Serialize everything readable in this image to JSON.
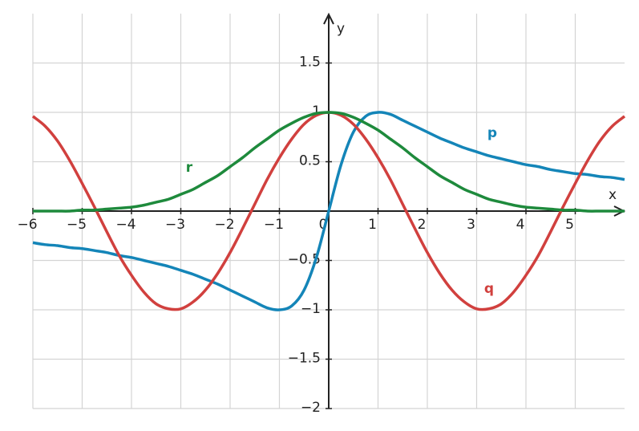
{
  "chart_data": {
    "type": "line",
    "x_label": "x",
    "y_label": "y",
    "x": [
      -6,
      -5.75,
      -5.5,
      -5.25,
      -5,
      -4.75,
      -4.5,
      -4.25,
      -4,
      -3.75,
      -3.5,
      -3.25,
      -3,
      -2.75,
      -2.5,
      -2.25,
      -2,
      -1.75,
      -1.5,
      -1.25,
      -1,
      -0.75,
      -0.5,
      -0.25,
      0,
      0.25,
      0.5,
      0.75,
      1,
      1.25,
      1.5,
      1.75,
      2,
      2.25,
      2.5,
      2.75,
      3,
      3.25,
      3.5,
      3.75,
      4,
      4.25,
      4.5,
      4.75,
      5,
      5.25,
      5.5,
      5.75,
      6
    ],
    "series": [
      {
        "name": "p",
        "color": "#1485b8",
        "values": [
          -0.32,
          -0.34,
          -0.35,
          -0.37,
          -0.38,
          -0.4,
          -0.42,
          -0.45,
          -0.47,
          -0.5,
          -0.53,
          -0.56,
          -0.6,
          -0.64,
          -0.69,
          -0.74,
          -0.8,
          -0.86,
          -0.92,
          -0.98,
          -1,
          -0.96,
          -0.8,
          -0.47,
          0,
          0.47,
          0.8,
          0.96,
          1,
          0.98,
          0.92,
          0.86,
          0.8,
          0.74,
          0.69,
          0.64,
          0.6,
          0.56,
          0.53,
          0.5,
          0.47,
          0.45,
          0.42,
          0.4,
          0.38,
          0.37,
          0.35,
          0.34,
          0.32
        ]
      },
      {
        "name": "q",
        "color": "#d1403e",
        "values": [
          0.96,
          0.86,
          0.71,
          0.51,
          0.28,
          0.04,
          -0.21,
          -0.45,
          -0.65,
          -0.82,
          -0.94,
          -0.99,
          -0.99,
          -0.92,
          -0.8,
          -0.63,
          -0.42,
          -0.18,
          0.07,
          0.32,
          0.54,
          0.73,
          0.88,
          0.97,
          1,
          0.97,
          0.88,
          0.73,
          0.54,
          0.32,
          0.07,
          -0.18,
          -0.42,
          -0.63,
          -0.8,
          -0.92,
          -0.99,
          -0.99,
          -0.94,
          -0.82,
          -0.65,
          -0.45,
          -0.21,
          0.04,
          0.28,
          0.51,
          0.71,
          0.86,
          0.96
        ]
      },
      {
        "name": "r",
        "color": "#1e8a3c",
        "values": [
          0,
          0,
          0,
          0,
          0.01,
          0.01,
          0.02,
          0.03,
          0.04,
          0.06,
          0.09,
          0.12,
          0.17,
          0.22,
          0.29,
          0.36,
          0.45,
          0.54,
          0.64,
          0.73,
          0.82,
          0.89,
          0.95,
          0.99,
          1,
          0.99,
          0.95,
          0.89,
          0.82,
          0.73,
          0.64,
          0.54,
          0.45,
          0.36,
          0.29,
          0.22,
          0.17,
          0.12,
          0.09,
          0.06,
          0.04,
          0.03,
          0.02,
          0.01,
          0.01,
          0,
          0,
          0,
          0
        ]
      }
    ],
    "xlim": [
      -6,
      6
    ],
    "ylim": [
      -2,
      2
    ],
    "xticks": [
      {
        "value": -6,
        "label": "−6"
      },
      {
        "value": -5,
        "label": "−5"
      },
      {
        "value": -4,
        "label": "−4"
      },
      {
        "value": -3,
        "label": "−3"
      },
      {
        "value": -2,
        "label": "−2"
      },
      {
        "value": -1,
        "label": "−1"
      },
      0,
      1,
      2,
      3,
      4,
      5
    ],
    "yticks": [
      {
        "value": -2,
        "label": "−2"
      },
      {
        "value": -1.5,
        "label": "−1.5"
      },
      {
        "value": -1,
        "label": "−1"
      },
      {
        "value": -0.5,
        "label": "−0.5"
      },
      0.5,
      1,
      1.5
    ],
    "grid": true
  }
}
